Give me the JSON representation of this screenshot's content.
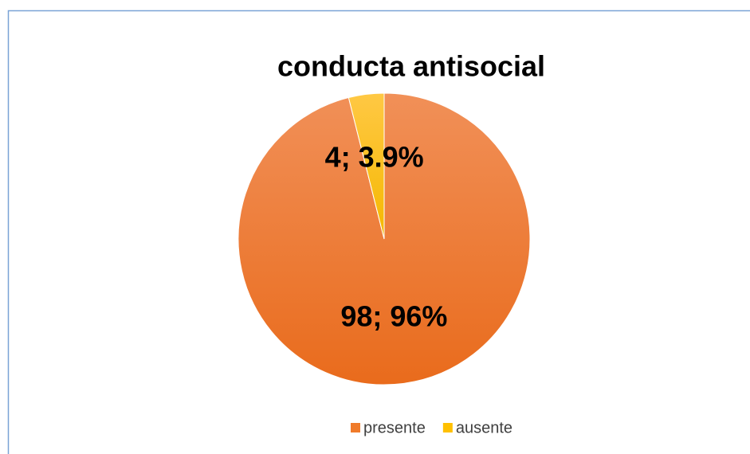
{
  "chart_data": {
    "type": "pie",
    "title": "conducta antisocial",
    "categories": [
      "presente",
      "ausente"
    ],
    "values": [
      98,
      4
    ],
    "value_labels": [
      "98; 96%",
      "4; 3.9%"
    ],
    "colors": [
      "#f07b2a",
      "#ffc000"
    ],
    "legend": "bottom"
  }
}
